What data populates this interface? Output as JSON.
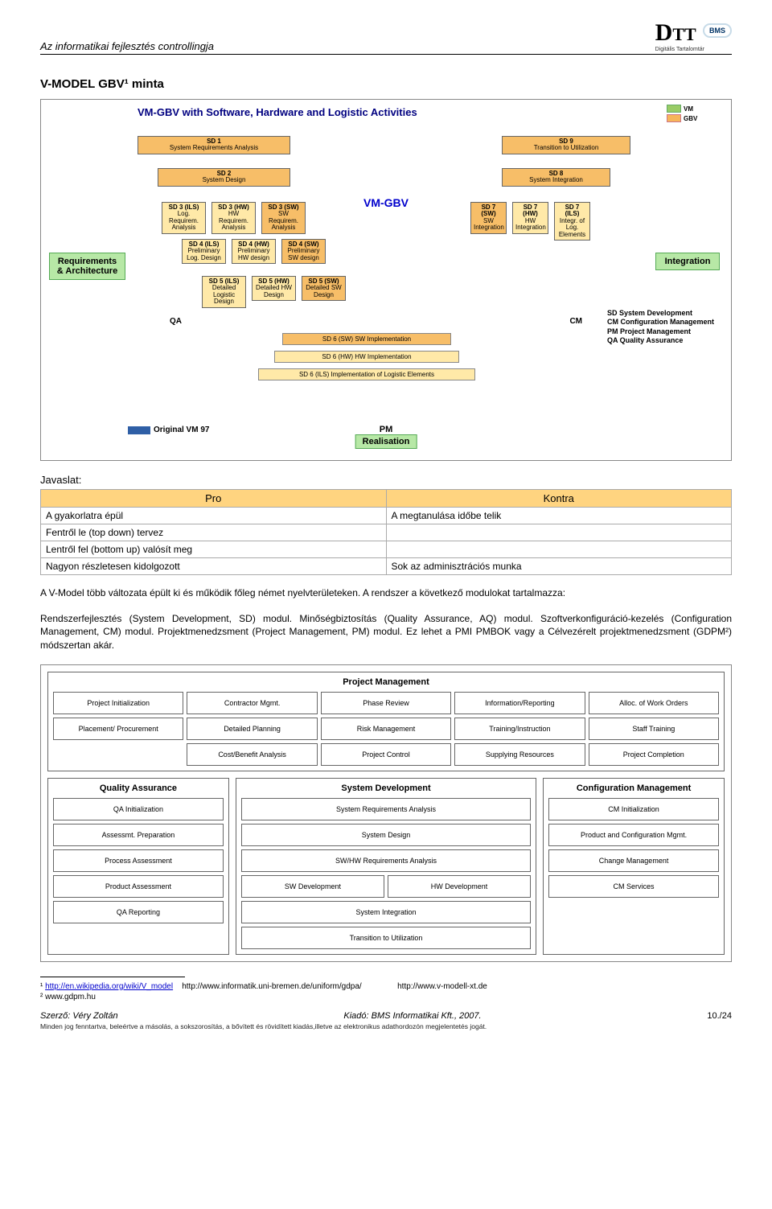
{
  "header": {
    "title": "Az informatikai fejlesztés controllingja",
    "logo_dtt_d": "D",
    "logo_dtt_tt": "TT",
    "logo_dtt_sub": "Digitális Tartalomtár",
    "logo_bms": "BMS"
  },
  "section_title": "V-MODEL GBV¹ minta",
  "vmodel": {
    "title": "VM-GBV with Software, Hardware and Logistic Activities",
    "key_vm_label": "VM",
    "key_gbv_label": "GBV",
    "side_left": "Requirements & Architecture",
    "side_right": "Integration",
    "center_label": "VM-GBV",
    "qa_label": "QA",
    "cm_label": "CM",
    "pm_label": "PM",
    "realisation": "Realisation",
    "origvm": "Original VM 97",
    "left_wide": [
      {
        "h": "SD 1",
        "t": "System Requirements Analysis"
      },
      {
        "h": "SD 2",
        "t": "System Design"
      }
    ],
    "left_narrow": [
      [
        {
          "h": "SD 3 (ILS)",
          "t": "Log. Requirem. Analysis"
        },
        {
          "h": "SD 3 (HW)",
          "t": "HW Requirem. Analysis"
        },
        {
          "h": "SD 3 (SW)",
          "t": "SW Requirem. Analysis"
        }
      ],
      [
        {
          "h": "SD 4 (ILS)",
          "t": "Preliminary Log. Design"
        },
        {
          "h": "SD 4 (HW)",
          "t": "Preliminary HW design"
        },
        {
          "h": "SD 4 (SW)",
          "t": "Preliminary SW design"
        }
      ],
      [
        {
          "h": "SD 5 (ILS)",
          "t": "Detailed Logistic Design"
        },
        {
          "h": "SD 5 (HW)",
          "t": "Detailed HW Design"
        },
        {
          "h": "SD 5 (SW)",
          "t": "Detailed SW Design"
        }
      ]
    ],
    "right_wide": [
      {
        "h": "SD 9",
        "t": "Transition to Utilization"
      },
      {
        "h": "SD 8",
        "t": "System Integration"
      }
    ],
    "right_narrow": [
      [
        {
          "h": "SD 7 (SW)",
          "t": "SW Integration"
        },
        {
          "h": "SD 7 (HW)",
          "t": "HW Integration"
        },
        {
          "h": "SD 7 (ILS)",
          "t": "Integr. of Log. Elements"
        }
      ]
    ],
    "impl": [
      "SD 6 (SW) SW Implementation",
      "SD 6 (HW) HW Implementation",
      "SD 6 (ILS) Implementation of Logistic Elements"
    ],
    "legend": "SD System Development\nCM Configuration Management\nPM Project Management\nQA Quality Assurance",
    "colors": {
      "highlight_green": "#b7e8a6",
      "orange": "#f7be68",
      "yellow": "#ffe9a8",
      "origvm_swatch": "#2f5fa6"
    }
  },
  "prokon": {
    "heading": "Javaslat:",
    "pro_h": "Pro",
    "kontra_h": "Kontra",
    "rows": [
      [
        "A gyakorlatra épül",
        "A megtanulása időbe telik"
      ],
      [
        "Fentről le (top down) tervez",
        ""
      ],
      [
        "Lentről fel (bottom up) valósít meg",
        ""
      ],
      [
        "Nagyon részletesen kidolgozott",
        "Sok az adminisztrációs munka"
      ]
    ]
  },
  "body": {
    "p1": "A V-Model több változata épült ki és működik főleg német nyelvterületeken. A rendszer a következő modulokat tartalmazza:",
    "p2": "Rendszerfejlesztés (System Development, SD) modul. Minőségbiztosítás (Quality Assurance, AQ) modul. Szoftverkonfiguráció-kezelés (Configuration Management, CM) modul. Projektmenedzsment (Project Management, PM) modul. Ez lehet a PMI PMBOK vagy a Célvezérelt projektmenedzsment (GDPM²) módszertan akár."
  },
  "modgrid": {
    "pm": {
      "title": "Project Management",
      "cells": [
        "Project Initialization",
        "Contractor Mgmt.",
        "Phase Review",
        "Information/Reporting",
        "Alloc. of Work Orders",
        "Placement/ Procurement",
        "Detailed Planning",
        "Risk Management",
        "Training/Instruction",
        "Staff Training",
        "",
        "Cost/Benefit Analysis",
        "Project Control",
        "Supplying Resources",
        "Project Completion"
      ]
    },
    "qa": {
      "title": "Quality Assurance",
      "cells": [
        "QA Initialization",
        "Assessmt. Preparation",
        "Process Assessment",
        "Product Assessment",
        "QA Reporting"
      ]
    },
    "sd": {
      "title": "System Development",
      "cells_top": [
        "System Requirements Analysis",
        "System Design",
        "SW/HW Requirements Analysis"
      ],
      "split": [
        "SW Development",
        "HW Development"
      ],
      "cells_bottom": [
        "System Integration",
        "Transition to Utilization"
      ]
    },
    "cm": {
      "title": "Configuration Management",
      "cells": [
        "CM Initialization",
        "Product and Configuration Mgmt.",
        "Change Management",
        "CM Services"
      ]
    }
  },
  "footnotes": {
    "f1_link": "http://en.wikipedia.org/wiki/V_model",
    "f1_rest1": "http://www.informatik.uni-bremen.de/uniform/gdpa/",
    "f1_rest2": "http://www.v-modell-xt.de",
    "f2": "www.gdpm.hu"
  },
  "footer": {
    "left": "Szerző:  Véry Zoltán",
    "center": "Kiadó:  BMS Informatikai Kft., 2007.",
    "right": "10./24",
    "copy": "Minden jog fenntartva, beleértve a másolás, a sokszorosítás, a bővített és rövidített kiadás,illetve az elektronikus adathordozón megjelentetés jogát."
  }
}
